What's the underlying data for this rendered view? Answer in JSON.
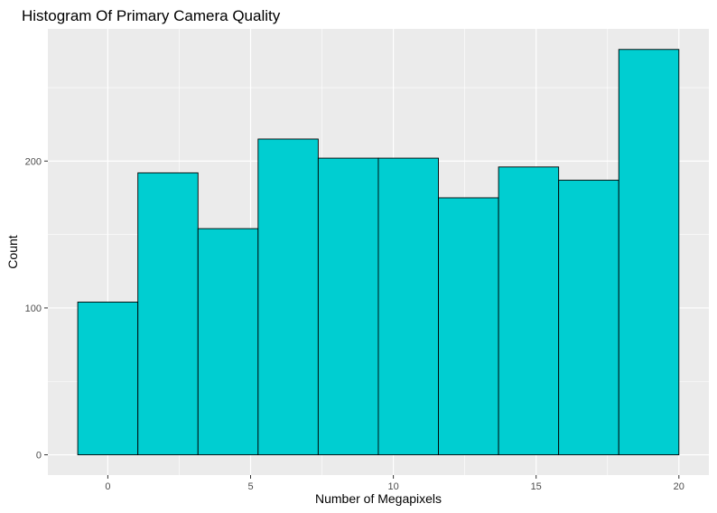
{
  "chart_data": {
    "type": "bar",
    "title": "Histogram Of Primary Camera Quality",
    "xlabel": "Number of Megapixels",
    "ylabel": "Count",
    "bins": [
      {
        "x0": -1.053,
        "x1": 1.053,
        "count": 104
      },
      {
        "x0": 1.053,
        "x1": 3.158,
        "count": 192
      },
      {
        "x0": 3.158,
        "x1": 5.263,
        "count": 154
      },
      {
        "x0": 5.263,
        "x1": 7.368,
        "count": 215
      },
      {
        "x0": 7.368,
        "x1": 9.474,
        "count": 202
      },
      {
        "x0": 9.474,
        "x1": 11.579,
        "count": 202
      },
      {
        "x0": 11.579,
        "x1": 13.684,
        "count": 175
      },
      {
        "x0": 13.684,
        "x1": 15.789,
        "count": 196
      },
      {
        "x0": 15.789,
        "x1": 17.895,
        "count": 187
      },
      {
        "x0": 17.895,
        "x1": 20.0,
        "count": 276
      }
    ],
    "x_ticks": [
      0,
      5,
      10,
      15,
      20
    ],
    "x_tick_labels": [
      "0",
      "5",
      "10",
      "15",
      "20"
    ],
    "y_ticks": [
      0,
      100,
      200
    ],
    "y_tick_labels": [
      "0",
      "100",
      "200"
    ],
    "xlim": [
      -2.1,
      21.05
    ],
    "ylim": [
      -13.8,
      290
    ],
    "grid": true,
    "colors": {
      "bar_fill": "#00CED1",
      "bar_outline": "#000000",
      "panel_background": "#EBEBEB",
      "grid_line": "#FFFFFF"
    }
  }
}
